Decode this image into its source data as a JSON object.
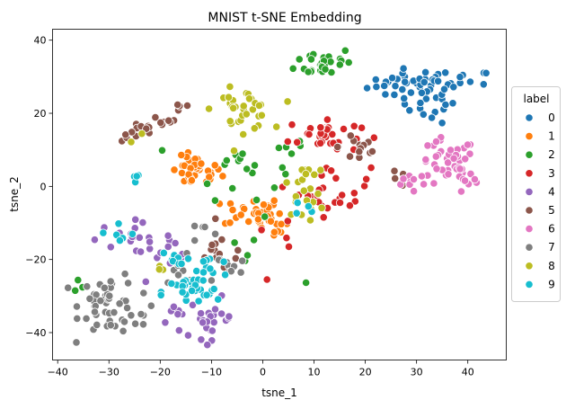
{
  "chart_data": {
    "type": "scatter",
    "title": "MNIST t-SNE Embedding",
    "xlabel": "tsne_1",
    "ylabel": "tsne_2",
    "xlim": [
      -41,
      47.5
    ],
    "ylim": [
      -47.5,
      43
    ],
    "xticks": [
      -40,
      -30,
      -20,
      -10,
      0,
      10,
      20,
      30,
      40
    ],
    "yticks": [
      -40,
      -20,
      0,
      20,
      40
    ],
    "grid": false,
    "legend": {
      "title": "label",
      "placement": "right-outside"
    },
    "series": [
      {
        "name": "0",
        "color": "#1f77b4",
        "clusters": [
          {
            "cx": 29,
            "cy": 28,
            "rx": 6,
            "ry": 3,
            "n": 34
          },
          {
            "cx": 39,
            "cy": 29,
            "rx": 4,
            "ry": 2,
            "n": 12
          },
          {
            "cx": 33,
            "cy": 23,
            "rx": 4,
            "ry": 4,
            "n": 18
          }
        ]
      },
      {
        "name": "1",
        "color": "#ff7f0e",
        "clusters": [
          {
            "cx": -13,
            "cy": 4,
            "rx": 3.5,
            "ry": 3,
            "n": 36
          },
          {
            "cx": -2,
            "cy": -7,
            "rx": 4,
            "ry": 3,
            "n": 32
          },
          {
            "cx": 2,
            "cy": -11,
            "rx": 3,
            "ry": 2,
            "n": 10
          }
        ]
      },
      {
        "name": "2",
        "color": "#2ca02c",
        "clusters": [
          {
            "cx": 12,
            "cy": 34,
            "rx": 4,
            "ry": 3,
            "n": 30
          },
          {
            "cx": -5,
            "cy": 5,
            "rx": 6,
            "ry": 6,
            "n": 16
          },
          {
            "cx": 6,
            "cy": 10,
            "rx": 3,
            "ry": 3,
            "n": 6
          },
          {
            "cx": -3,
            "cy": -18,
            "rx": 6,
            "ry": 6,
            "n": 6
          },
          {
            "cx": -36,
            "cy": -28,
            "rx": 1,
            "ry": 1.5,
            "n": 3
          }
        ]
      },
      {
        "name": "3",
        "color": "#d62728",
        "clusters": [
          {
            "cx": 12,
            "cy": 14,
            "rx": 5,
            "ry": 3.5,
            "n": 32
          },
          {
            "cx": 14,
            "cy": -1,
            "rx": 5,
            "ry": 5,
            "n": 26
          },
          {
            "cx": 3,
            "cy": -16,
            "rx": 3,
            "ry": 4,
            "n": 5
          }
        ]
      },
      {
        "name": "4",
        "color": "#9467bd",
        "clusters": [
          {
            "cx": -10,
            "cy": -36,
            "rx": 3,
            "ry": 4,
            "n": 24
          },
          {
            "cx": -16,
            "cy": -37,
            "rx": 3,
            "ry": 3,
            "n": 8
          },
          {
            "cx": -26,
            "cy": -14,
            "rx": 6,
            "ry": 3,
            "n": 20
          },
          {
            "cx": -18,
            "cy": -21,
            "rx": 5,
            "ry": 4,
            "n": 10
          }
        ]
      },
      {
        "name": "5",
        "color": "#8c564b",
        "clusters": [
          {
            "cx": -24,
            "cy": 15,
            "rx": 2.5,
            "ry": 2,
            "n": 12
          },
          {
            "cx": -19,
            "cy": 18,
            "rx": 2,
            "ry": 1.5,
            "n": 8
          },
          {
            "cx": -16,
            "cy": 22,
            "rx": 1.5,
            "ry": 1.5,
            "n": 4
          },
          {
            "cx": 19,
            "cy": 11,
            "rx": 3,
            "ry": 4,
            "n": 14
          },
          {
            "cx": -8,
            "cy": -18,
            "rx": 4,
            "ry": 4,
            "n": 12
          },
          {
            "cx": 26,
            "cy": 2,
            "rx": 2,
            "ry": 1.5,
            "n": 4
          }
        ]
      },
      {
        "name": "6",
        "color": "#e377c2",
        "clusters": [
          {
            "cx": 36,
            "cy": 6,
            "rx": 4,
            "ry": 5,
            "n": 40
          },
          {
            "cx": 29,
            "cy": 1,
            "rx": 3,
            "ry": 2,
            "n": 10
          },
          {
            "cx": 40,
            "cy": 0,
            "rx": 2.5,
            "ry": 2,
            "n": 6
          }
        ]
      },
      {
        "name": "7",
        "color": "#7f7f7f",
        "clusters": [
          {
            "cx": -30,
            "cy": -32,
            "rx": 4,
            "ry": 6,
            "n": 48
          },
          {
            "cx": -23,
            "cy": -36,
            "rx": 3,
            "ry": 2,
            "n": 6
          },
          {
            "cx": -15,
            "cy": -22,
            "rx": 3,
            "ry": 3,
            "n": 6
          },
          {
            "cx": -12,
            "cy": -14,
            "rx": 3,
            "ry": 3,
            "n": 6
          },
          {
            "cx": -7,
            "cy": -22,
            "rx": 3,
            "ry": 4,
            "n": 10
          }
        ]
      },
      {
        "name": "8",
        "color": "#bcbd22",
        "clusters": [
          {
            "cx": -4,
            "cy": 21,
            "rx": 4,
            "ry": 4,
            "n": 34
          },
          {
            "cx": 8,
            "cy": -3,
            "rx": 3,
            "ry": 4,
            "n": 16
          },
          {
            "cx": 8,
            "cy": 4,
            "rx": 2,
            "ry": 1.5,
            "n": 6
          },
          {
            "cx": -25,
            "cy": 13,
            "rx": 1,
            "ry": 1,
            "n": 2
          },
          {
            "cx": -20,
            "cy": -22,
            "rx": 1.5,
            "ry": 1.5,
            "n": 3
          }
        ]
      },
      {
        "name": "9",
        "color": "#17becf",
        "clusters": [
          {
            "cx": -14,
            "cy": -29,
            "rx": 4,
            "ry": 3,
            "n": 26
          },
          {
            "cx": -11,
            "cy": -23,
            "rx": 3,
            "ry": 4,
            "n": 14
          },
          {
            "cx": -17,
            "cy": -20,
            "rx": 3,
            "ry": 3,
            "n": 8
          },
          {
            "cx": -29,
            "cy": -13,
            "rx": 3,
            "ry": 3,
            "n": 6
          },
          {
            "cx": -24,
            "cy": 2,
            "rx": 1.5,
            "ry": 1.5,
            "n": 4
          },
          {
            "cx": 9,
            "cy": -6,
            "rx": 2,
            "ry": 2,
            "n": 4
          }
        ]
      }
    ]
  }
}
